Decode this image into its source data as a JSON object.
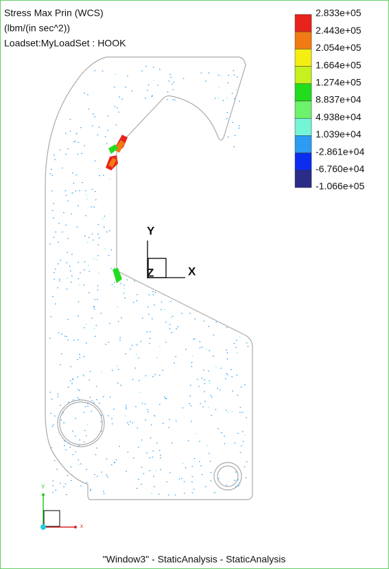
{
  "header": {
    "title": "Stress Max Prin (WCS)",
    "units": "(lbm/(in sec^2))",
    "loadset": "Loadset:MyLoadSet :  HOOK"
  },
  "legend": {
    "labels": [
      "2.833e+05",
      "2.443e+05",
      "2.054e+05",
      "1.664e+05",
      "1.274e+05",
      "8.837e+04",
      "4.938e+04",
      "1.039e+04",
      "-2.861e+04",
      "-6.760e+04",
      "-1.066e+05"
    ],
    "colors": [
      "#e8231b",
      "#f27a12",
      "#f4ee12",
      "#c6f11f",
      "#22dc1e",
      "#6cf26b",
      "#74f6d6",
      "#2b9cf2",
      "#0c2cf0",
      "#2b2b88"
    ]
  },
  "triad": {
    "y": "Y",
    "x": "X",
    "z": "Z"
  },
  "mini_triad": {
    "y": "Y",
    "x": "x"
  },
  "footer": "\"Window3\" - StaticAnalysis - StaticAnalysis"
}
